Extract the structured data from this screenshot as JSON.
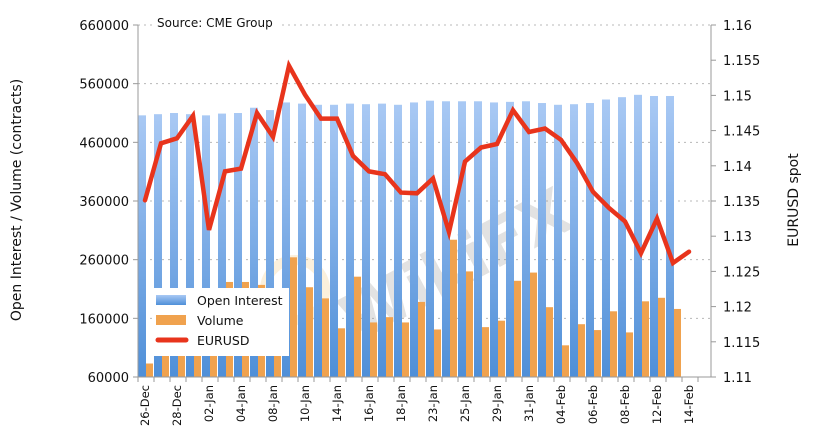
{
  "chart_data": {
    "type": "bar+line",
    "title": "",
    "annotation": "Source: CME Group",
    "watermark": "WikiFX",
    "categories": [
      "26-Dec",
      "",
      "28-Dec",
      "",
      "02-Jan",
      "",
      "04-Jan",
      "",
      "08-Jan",
      "",
      "10-Jan",
      "",
      "14-Jan",
      "",
      "16-Jan",
      "",
      "18-Jan",
      "",
      "23-Jan",
      "",
      "25-Jan",
      "",
      "29-Jan",
      "",
      "31-Jan",
      "",
      "04-Feb",
      "",
      "06-Feb",
      "",
      "08-Feb",
      "",
      "12-Feb",
      "",
      "14-Feb"
    ],
    "ylabel_left": "Open Interest / Volume (contracts)",
    "ylabel_right": "EURUSD spot",
    "ylim_left": [
      60000,
      660000
    ],
    "yticks_left": [
      "660000",
      "560000",
      "460000",
      "360000",
      "260000",
      "160000",
      "60000"
    ],
    "ylim_right": [
      1.11,
      1.16
    ],
    "yticks_right": [
      "1.16",
      "1.155",
      "1.15",
      "1.145",
      "1.14",
      "1.135",
      "1.13",
      "1.125",
      "1.12",
      "1.115",
      "1.11"
    ],
    "grid": "horizontal dotted (left axis)",
    "legend_position": "lower-left",
    "series": [
      {
        "name": "Open Interest",
        "type": "bar",
        "axis": "left",
        "color": "#5b9be0",
        "values": [
          506000,
          508000,
          510000,
          508000,
          506000,
          509000,
          510000,
          519000,
          515000,
          528000,
          526000,
          524000,
          524000,
          526000,
          525000,
          526000,
          524000,
          528000,
          531000,
          530000,
          530000,
          530000,
          528000,
          529000,
          530000,
          527000,
          524000,
          525000,
          527000,
          533000,
          537000,
          541000,
          539000,
          539000,
          null
        ]
      },
      {
        "name": "Volume",
        "type": "bar",
        "axis": "left",
        "color": "#f0a24e",
        "values": [
          83000,
          140000,
          150000,
          170000,
          96000,
          222000,
          222000,
          217000,
          160000,
          264000,
          213000,
          194000,
          143000,
          231000,
          153000,
          162000,
          153000,
          188000,
          141000,
          294000,
          240000,
          145000,
          156000,
          224000,
          238000,
          179000,
          114000,
          150000,
          140000,
          172000,
          136000,
          189000,
          195000,
          176000,
          null
        ]
      },
      {
        "name": "EURUSD",
        "type": "line",
        "axis": "right",
        "color": "#e8341c",
        "values": [
          1.1351,
          1.1432,
          1.1439,
          1.1471,
          1.1309,
          1.1392,
          1.1396,
          1.1475,
          1.1441,
          1.1542,
          1.1501,
          1.1467,
          1.1467,
          1.1414,
          1.1392,
          1.1388,
          1.1362,
          1.1361,
          1.1382,
          1.1306,
          1.1406,
          1.1426,
          1.1431,
          1.1479,
          1.1448,
          1.1453,
          1.1437,
          1.1404,
          1.1363,
          1.134,
          1.1321,
          1.1276,
          1.1325,
          1.1262,
          1.1278
        ]
      }
    ]
  }
}
